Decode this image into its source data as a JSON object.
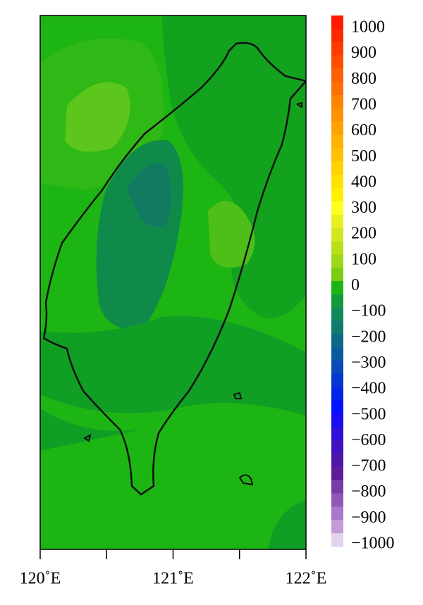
{
  "chart_data": {
    "type": "contour-map",
    "xlim": [
      120,
      122
    ],
    "xticks": [
      {
        "value": 120,
        "label": "120˚E"
      },
      {
        "value": 121,
        "label": "121˚E"
      },
      {
        "value": 122,
        "label": "122˚E"
      }
    ],
    "xminor_ticks": [
      120.5,
      121.5
    ],
    "colorbar": {
      "lim": [
        -1000,
        1000
      ],
      "ticks": [
        1000,
        900,
        800,
        700,
        600,
        500,
        400,
        300,
        200,
        100,
        0,
        {
          "value": -100,
          "label": "−100"
        },
        {
          "value": -200,
          "label": "−200"
        },
        {
          "value": -300,
          "label": "−300"
        },
        {
          "value": -400,
          "label": "−400"
        },
        {
          "value": -500,
          "label": "−500"
        },
        {
          "value": -600,
          "label": "−600"
        },
        {
          "value": -700,
          "label": "−700"
        },
        {
          "value": -800,
          "label": "−800"
        },
        {
          "value": -900,
          "label": "−900"
        },
        {
          "value": -1000,
          "label": "−1000"
        }
      ],
      "colors": [
        "#ff1a00",
        "#ff2a00",
        "#ff3c00",
        "#ff4e00",
        "#ff6000",
        "#ff7000",
        "#ff8200",
        "#ff9200",
        "#ffa200",
        "#ffb200",
        "#ffc200",
        "#ffd200",
        "#ffe200",
        "#fff000",
        "#ffff20",
        "#e8f020",
        "#d0e820",
        "#b8e018",
        "#9cd818",
        "#7ccc14",
        "#1db514",
        "#139a3a",
        "#108a5a",
        "#0e7a70",
        "#0c6a88",
        "#0a5aa0",
        "#0848b8",
        "#0636d0",
        "#0424e8",
        "#0412ff",
        "#1a0ef0",
        "#3010d8",
        "#4012c0",
        "#5016a8",
        "#601c98",
        "#7a3aa8",
        "#9258b8",
        "#aa78c8",
        "#c49ad8",
        "#e4d2ec"
      ]
    }
  }
}
